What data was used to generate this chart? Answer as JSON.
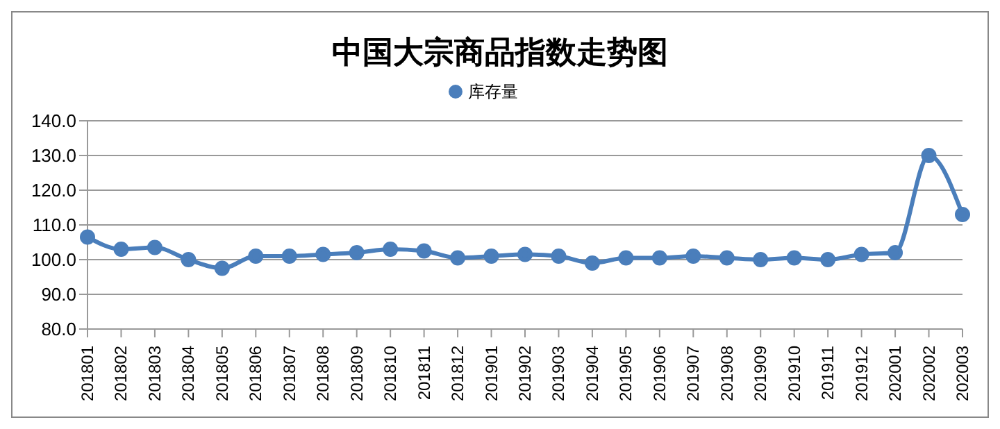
{
  "chart_data": {
    "type": "line",
    "title": "中国大宗商品指数走势图",
    "categories": [
      "201801",
      "201802",
      "201803",
      "201804",
      "201805",
      "201806",
      "201807",
      "201808",
      "201809",
      "201810",
      "201811",
      "201812",
      "201901",
      "201902",
      "201903",
      "201904",
      "201905",
      "201906",
      "201907",
      "201908",
      "201909",
      "201910",
      "201911",
      "201912",
      "202001",
      "202002",
      "202003"
    ],
    "series": [
      {
        "name": "库存量",
        "color": "#4a7ebb",
        "values": [
          106.5,
          103,
          103.5,
          100,
          97.5,
          101,
          101,
          101.5,
          102,
          103,
          102.5,
          100.5,
          101,
          101.5,
          101,
          99,
          100.5,
          100.5,
          101,
          100.5,
          100,
          100.5,
          100,
          101.5,
          102,
          130,
          113
        ]
      }
    ],
    "ylim": [
      80,
      140
    ],
    "yticks": [
      {
        "value": 80,
        "label": "80.0"
      },
      {
        "value": 90,
        "label": "90.0"
      },
      {
        "value": 100,
        "label": "100.0"
      },
      {
        "value": 110,
        "label": "110.0"
      },
      {
        "value": 120,
        "label": "120.0"
      },
      {
        "value": 130,
        "label": "130.0"
      },
      {
        "value": 140,
        "label": "140.0"
      }
    ],
    "grid": "y",
    "legend": "top",
    "marker": "circle",
    "line_style": "solid"
  }
}
